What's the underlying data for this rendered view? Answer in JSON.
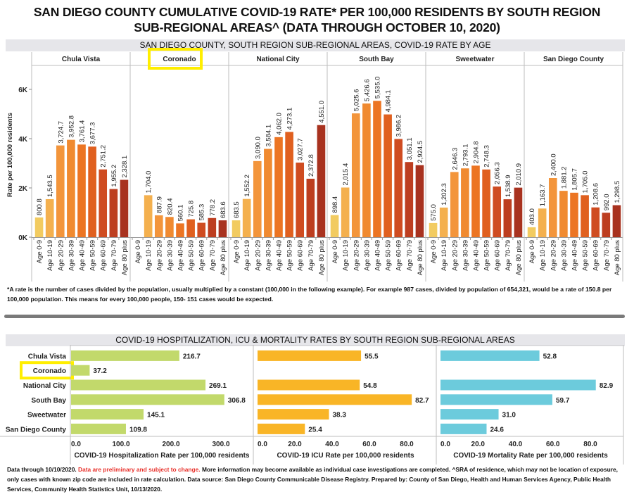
{
  "title_line1": "SAN DIEGO COUNTY CUMULATIVE COVID-19 RATE* PER 100,000 RESIDENTS BY SOUTH REGION",
  "title_line2": "SUB-REGIONAL AREAS^ (DATA THROUGH OCTOBER 10, 2020)",
  "top_section_header": "SAN DIEGO COUNTY, SOUTH REGION SUB-REGIONAL AREAS, COVID-19 RATE BY AGE",
  "footnote_line1": "*A rate is the number of cases divided by the population, usually multiplied by a constant (100,000 in the following example). For example 987 cases, divided by population of 654,321, would be a rate of 150.8 per",
  "footnote_line2": "100,000 population. This means for every 100,000 people, 150- 151 cases would be expected.",
  "bottom_section_header": "COVID-19 HOSPITALIZATION, ICU & MORTALITY RATES BY SOUTH REGION SUB-REGIONAL AREAS",
  "bottom_note": {
    "part1": "Data through 10/10/2020. ",
    "part2_red": "Data are preliminary and subject to change.",
    "part3": " More information may become available as individual case investigations are completed. ^SRA of residence, which may not be location of exposure, only cases with known zip code are included in rate calculation. Data source: San Diego County Communicable Disease Registry. Prepared by: County of San Diego, Health and Human Services Agency, Public Health Services, Community Health Statistics Unit, 10/13/2020."
  },
  "highlight": {
    "area": "Coronado",
    "color": "#ffee00"
  },
  "chart_data": [
    {
      "type": "bar",
      "title": "SAN DIEGO COUNTY, SOUTH REGION SUB-REGIONAL AREAS, COVID-19 RATE BY AGE",
      "ylabel": "Rate per 100,000 residents",
      "xlabel": "",
      "ylim": [
        0,
        7000
      ],
      "yticks": [
        0,
        2000,
        4000,
        6000
      ],
      "ytick_labels": [
        "0K",
        "2K",
        "4K",
        "6K"
      ],
      "grid": false,
      "categories": [
        "Age 0-9",
        "Age 10-19",
        "Age 20-29",
        "Age 30-39",
        "Age 40-49",
        "Age 50-59",
        "Age 60-69",
        "Age 70-79",
        "Age 80 plus"
      ],
      "colors": [
        "#f2cb60",
        "#f4b04e",
        "#f3953b",
        "#f08a30",
        "#ec7523",
        "#e0601f",
        "#cf4c21",
        "#bd3e20",
        "#a8321f"
      ],
      "panels": [
        {
          "name": "Chula Vista",
          "values": [
            800.8,
            1543.5,
            3724.7,
            3952.8,
            3761.4,
            3677.3,
            2751.2,
            1955.2,
            2328.1
          ],
          "labels": [
            "800.8",
            "1,543.5",
            "3,724.7",
            "3,952.8",
            "3,761.4",
            "3,677.3",
            "2,751.2",
            "1,955.2",
            "2,328.1"
          ]
        },
        {
          "name": "Coronado",
          "values": [
            null,
            1704.0,
            887.9,
            820.4,
            560.1,
            725.8,
            585.3,
            778.2,
            683.6
          ],
          "labels": [
            "",
            "1,704.0",
            "887.9",
            "820.4",
            "560.1",
            "725.8",
            "585.3",
            "778.2",
            "683.6"
          ]
        },
        {
          "name": "National City",
          "values": [
            683.5,
            1552.2,
            3090.0,
            3584.1,
            4062.0,
            4273.1,
            3027.7,
            2372.8,
            4551.0
          ],
          "labels": [
            "683.5",
            "1,552.2",
            "3,090.0",
            "3,584.1",
            "4,062.0",
            "4,273.1",
            "3,027.7",
            "2,372.8",
            "4,551.0"
          ]
        },
        {
          "name": "South Bay",
          "values": [
            898.4,
            2015.4,
            5025.6,
            5426.6,
            5535.0,
            4984.1,
            3986.2,
            3051.1,
            2924.5
          ],
          "labels": [
            "898.4",
            "2,015.4",
            "5,025.6",
            "5,426.6",
            "5,535.0",
            "4,984.1",
            "3,986.2",
            "3,051.1",
            "2,924.5"
          ]
        },
        {
          "name": "Sweetwater",
          "values": [
            575.0,
            1202.3,
            2646.3,
            2793.1,
            2904.8,
            2748.3,
            2056.3,
            1538.9,
            2010.9
          ],
          "labels": [
            "575.0",
            "1,202.3",
            "2,646.3",
            "2,793.1",
            "2,904.8",
            "2,748.3",
            "2,056.3",
            "1,538.9",
            "2,010.9"
          ]
        },
        {
          "name": "San Diego County",
          "values": [
            403.0,
            1163.7,
            2400.0,
            1881.2,
            1805.7,
            1705.0,
            1208.6,
            992.0,
            1298.5
          ],
          "labels": [
            "403.0",
            "1,163.7",
            "2,400.0",
            "1,881.2",
            "1,805.7",
            "1,705.0",
            "1,208.6",
            "992.0",
            "1,298.5"
          ]
        }
      ]
    },
    {
      "type": "bar",
      "orientation": "horizontal",
      "title": "COVID-19 HOSPITALIZATION, ICU & MORTALITY RATES BY SOUTH REGION SUB-REGIONAL AREAS",
      "categories": [
        "Chula Vista",
        "Coronado",
        "National City",
        "South Bay",
        "Sweetwater",
        "San Diego County"
      ],
      "grid": false,
      "panels": [
        {
          "name": "Hospitalization",
          "xlabel": "COVID-19 Hospitalization Rate per 100,000 residents",
          "color": "#c2d96b",
          "xlim": [
            0,
            350
          ],
          "xticks": [
            0,
            100,
            200,
            300
          ],
          "xtick_labels": [
            "0.0",
            "100.0",
            "200.0",
            "300.0"
          ],
          "values": [
            216.7,
            37.2,
            269.1,
            306.8,
            145.1,
            109.8
          ],
          "labels": [
            "216.7",
            "37.2",
            "269.1",
            "306.8",
            "145.1",
            "109.8"
          ]
        },
        {
          "name": "ICU",
          "xlabel": "COVID-19 ICU Rate per 100,000 residents",
          "color": "#f9b526",
          "xlim": [
            0,
            95
          ],
          "xticks": [
            0,
            20,
            40,
            60,
            80
          ],
          "xtick_labels": [
            "0.0",
            "20.0",
            "40.0",
            "60.0",
            "80.0"
          ],
          "values": [
            55.5,
            null,
            54.8,
            82.7,
            38.3,
            25.4
          ],
          "labels": [
            "55.5",
            "",
            "54.8",
            "82.7",
            "38.3",
            "25.4"
          ]
        },
        {
          "name": "Mortality",
          "xlabel": "COVID-19 Mortality Rate per 100,000 residents",
          "color": "#6ccbdc",
          "xlim": [
            0,
            97
          ],
          "xticks": [
            0,
            20,
            40,
            60,
            80
          ],
          "xtick_labels": [
            "0.0",
            "20.0",
            "40.0",
            "60.0",
            "80.0"
          ],
          "values": [
            52.8,
            null,
            82.9,
            59.7,
            31.0,
            24.6
          ],
          "labels": [
            "52.8",
            "",
            "82.9",
            "59.7",
            "31.0",
            "24.6"
          ]
        }
      ]
    }
  ]
}
